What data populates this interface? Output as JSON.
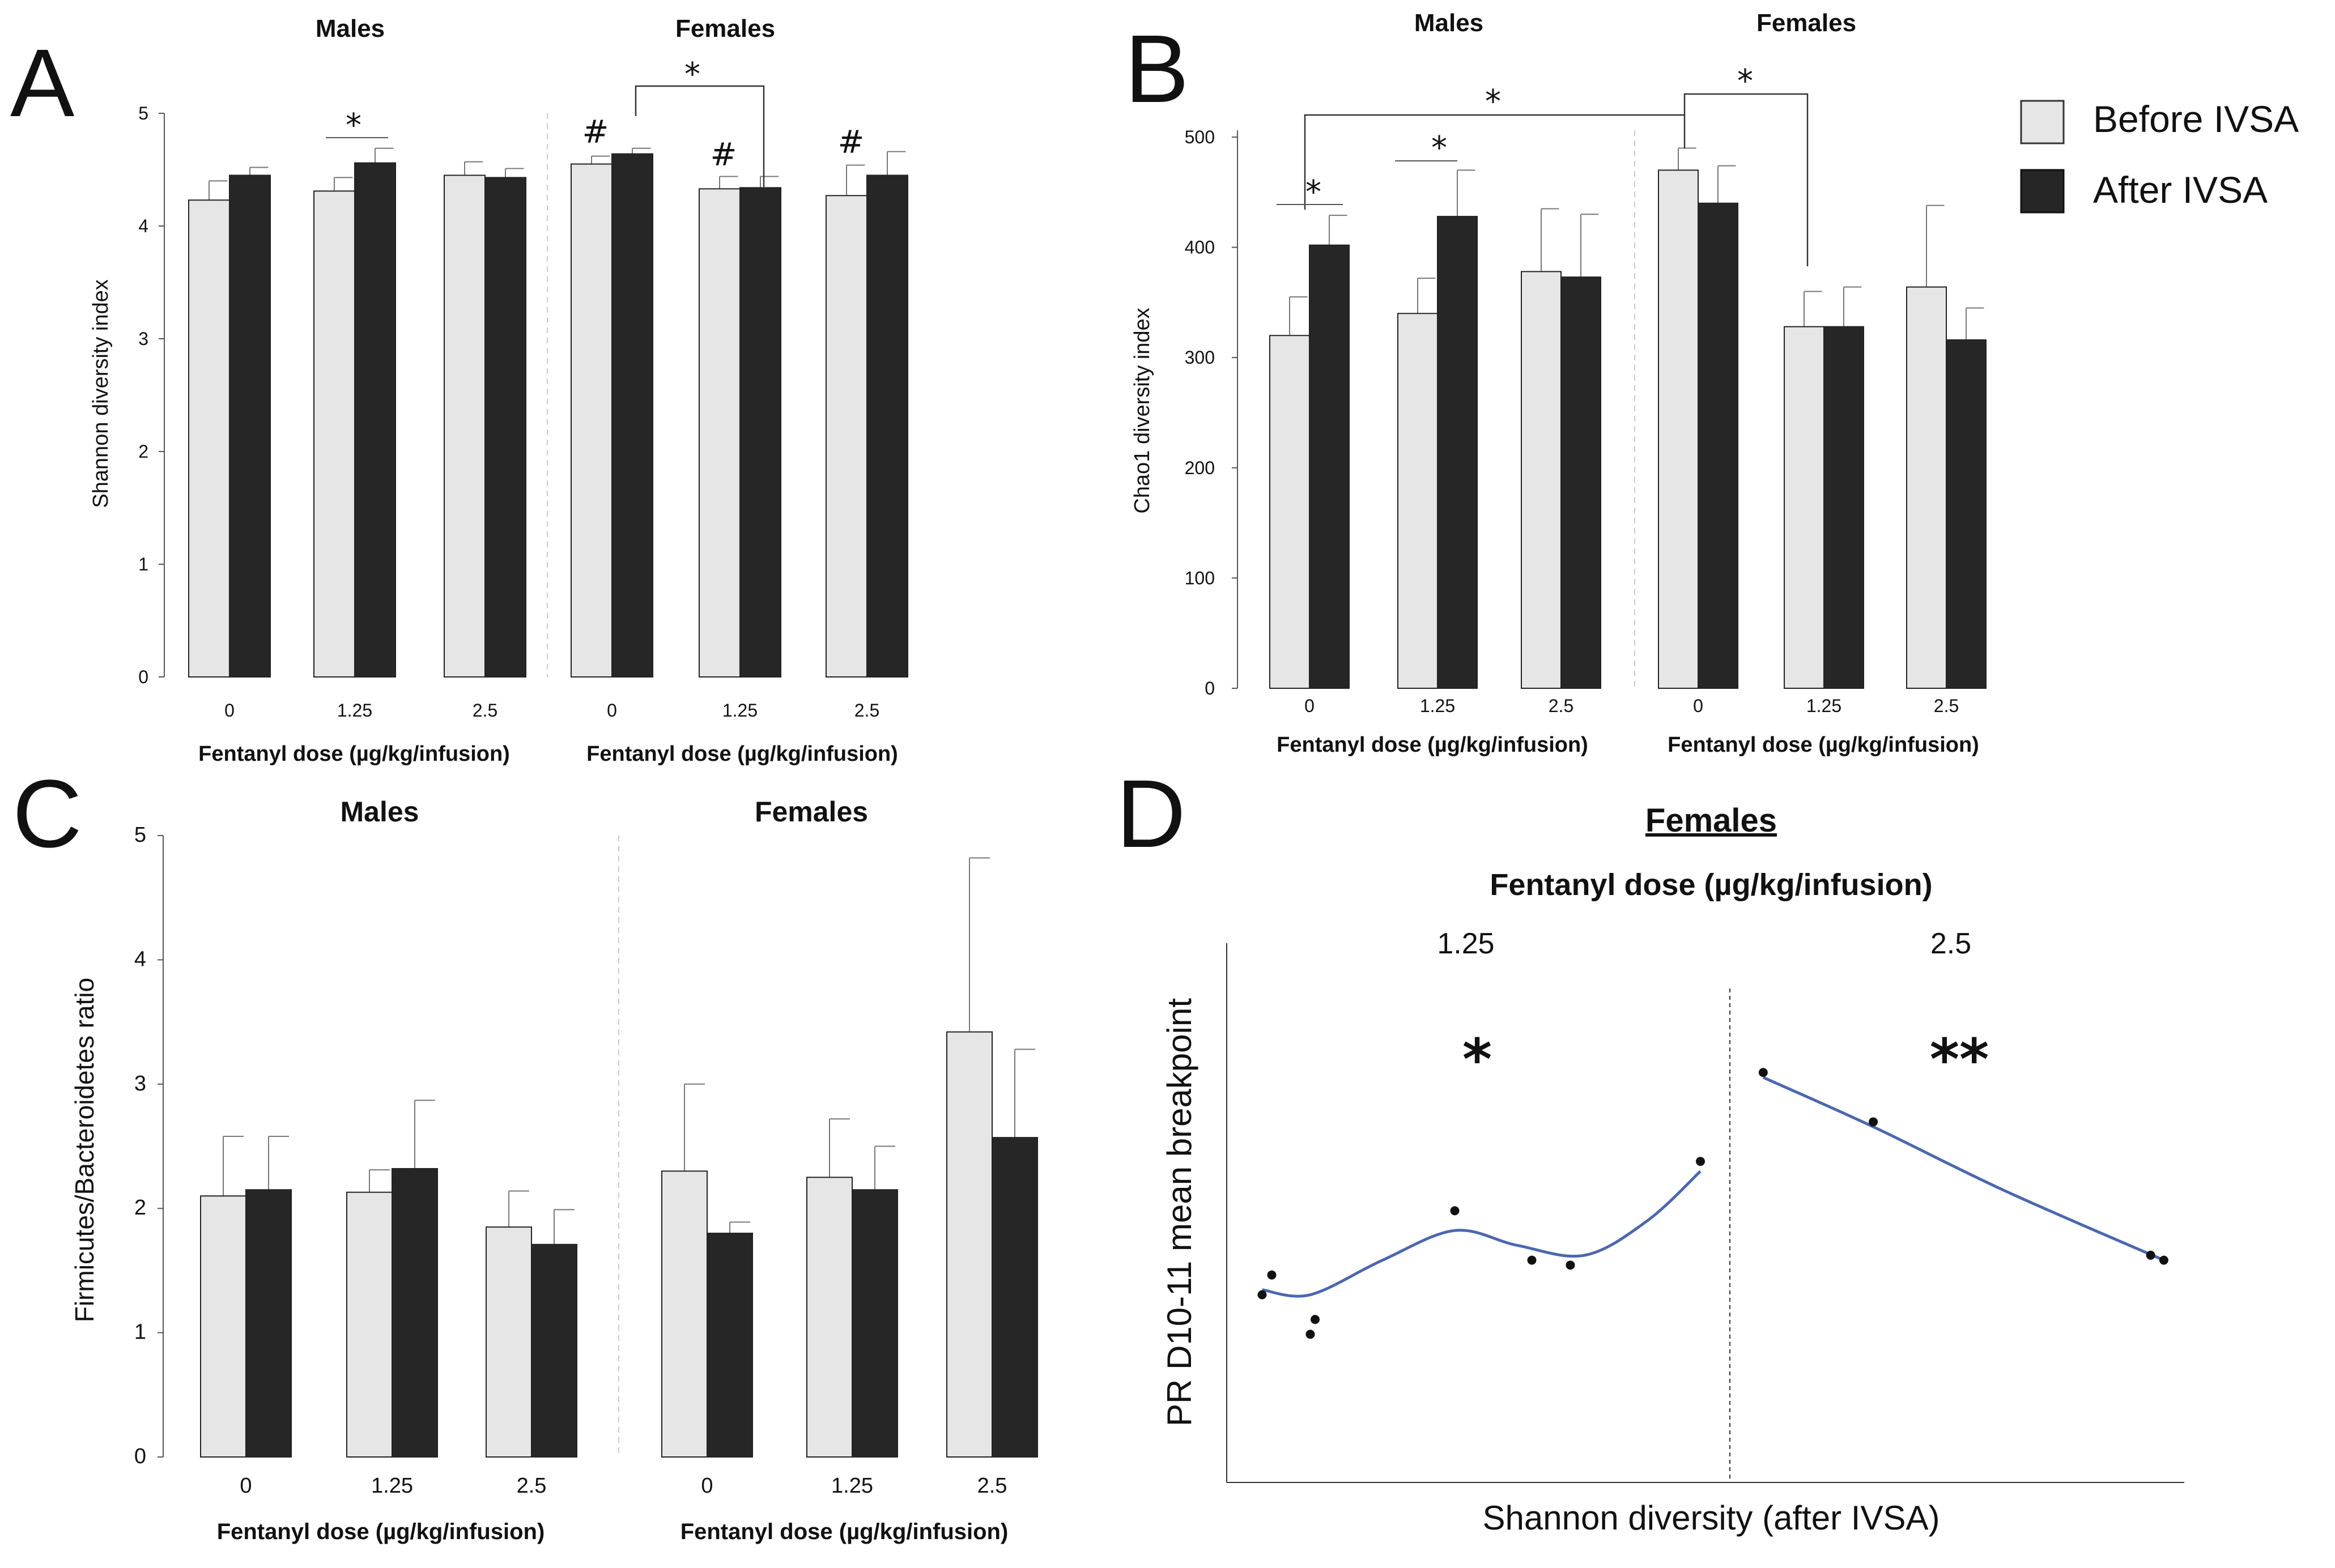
{
  "legend": {
    "before_label": "Before IVSA",
    "after_label": "After IVSA",
    "before_color": "#e6e6e6",
    "after_color": "#262626"
  },
  "chart_data": [
    {
      "panel": "A",
      "type": "bar",
      "ylabel": "Shannon diversity index",
      "ylim": [
        0,
        5
      ],
      "yticks": [
        "0",
        "1",
        "2",
        "3",
        "4",
        "5"
      ],
      "groups": [
        "Males",
        "Females"
      ],
      "categories": [
        "0",
        "1.25",
        "2.5"
      ],
      "xlabel": "Fentanyl dose (µg/kg/infusion)",
      "series": [
        {
          "name": "Before IVSA",
          "male_values": [
            4.23,
            4.31,
            4.45
          ],
          "male_errors": [
            0.17,
            0.12,
            0.12
          ],
          "female_values": [
            4.55,
            4.33,
            4.27
          ],
          "female_errors": [
            0.07,
            0.11,
            0.27
          ]
        },
        {
          "name": "After IVSA",
          "male_values": [
            4.45,
            4.56,
            4.43
          ],
          "male_errors": [
            0.07,
            0.13,
            0.08
          ],
          "female_values": [
            4.64,
            4.34,
            4.45
          ],
          "female_errors": [
            0.05,
            0.1,
            0.21
          ]
        }
      ],
      "annotations": [
        "*",
        "*",
        "#",
        "#",
        "#"
      ]
    },
    {
      "panel": "B",
      "type": "bar",
      "ylabel": "Chao1 diversity index",
      "ylim": [
        0,
        500
      ],
      "yticks": [
        "0",
        "100",
        "200",
        "300",
        "400",
        "500"
      ],
      "groups": [
        "Males",
        "Females"
      ],
      "categories": [
        "0",
        "1.25",
        "2.5"
      ],
      "xlabel": "Fentanyl dose (µg/kg/infusion)",
      "series": [
        {
          "name": "Before IVSA",
          "male_values": [
            320,
            340,
            378
          ],
          "male_errors": [
            35,
            32,
            57
          ],
          "female_values": [
            470,
            328,
            364
          ],
          "female_errors": [
            20,
            32,
            74
          ]
        },
        {
          "name": "After IVSA",
          "male_values": [
            402,
            428,
            373
          ],
          "male_errors": [
            27,
            42,
            57
          ],
          "female_values": [
            440,
            328,
            316
          ],
          "female_errors": [
            34,
            36,
            29
          ]
        }
      ],
      "annotations": [
        "*",
        "*",
        "*",
        "*"
      ]
    },
    {
      "panel": "C",
      "type": "bar",
      "ylabel": "Firmicutes/Bacteroidetes ratio",
      "ylim": [
        0,
        5
      ],
      "yticks": [
        "0",
        "1",
        "2",
        "3",
        "4",
        "5"
      ],
      "groups": [
        "Males",
        "Females"
      ],
      "categories": [
        "0",
        "1.25",
        "2.5"
      ],
      "xlabel": "Fentanyl dose (µg/kg/infusion)",
      "series": [
        {
          "name": "Before IVSA",
          "male_values": [
            2.1,
            2.13,
            1.85
          ],
          "male_errors": [
            0.48,
            0.18,
            0.29
          ],
          "female_values": [
            2.3,
            2.25,
            3.42
          ],
          "female_errors": [
            0.7,
            0.47,
            1.4
          ]
        },
        {
          "name": "After IVSA",
          "male_values": [
            2.15,
            2.32,
            1.71
          ],
          "male_errors": [
            0.43,
            0.55,
            0.28
          ],
          "female_values": [
            1.8,
            2.15,
            2.57
          ],
          "female_errors": [
            0.09,
            0.35,
            0.71
          ]
        }
      ]
    },
    {
      "panel": "D",
      "type": "scatter",
      "title": "Females",
      "subtitle": "Fentanyl dose (µg/kg/infusion)",
      "xlabel": "Shannon diversity (after IVSA)",
      "ylabel": "PR D10-11 mean breakpoint",
      "facets": [
        {
          "dose": "1.25",
          "significance": "*",
          "points": [
            [
              0.05,
              0.38
            ],
            [
              0.07,
              0.42
            ],
            [
              0.15,
              0.3
            ],
            [
              0.16,
              0.33
            ],
            [
              0.45,
              0.55
            ],
            [
              0.61,
              0.45
            ],
            [
              0.69,
              0.44
            ],
            [
              0.96,
              0.65
            ]
          ],
          "fit": [
            [
              0.05,
              0.39
            ],
            [
              0.15,
              0.38
            ],
            [
              0.3,
              0.45
            ],
            [
              0.45,
              0.51
            ],
            [
              0.58,
              0.48
            ],
            [
              0.72,
              0.46
            ],
            [
              0.85,
              0.53
            ],
            [
              0.96,
              0.63
            ]
          ]
        },
        {
          "dose": "2.5",
          "significance": "**",
          "points": [
            [
              0.05,
              0.83
            ],
            [
              0.3,
              0.73
            ],
            [
              0.93,
              0.46
            ],
            [
              0.96,
              0.45
            ]
          ],
          "fit": [
            [
              0.05,
              0.82
            ],
            [
              0.3,
              0.72
            ],
            [
              0.6,
              0.59
            ],
            [
              0.96,
              0.45
            ]
          ]
        }
      ]
    }
  ]
}
